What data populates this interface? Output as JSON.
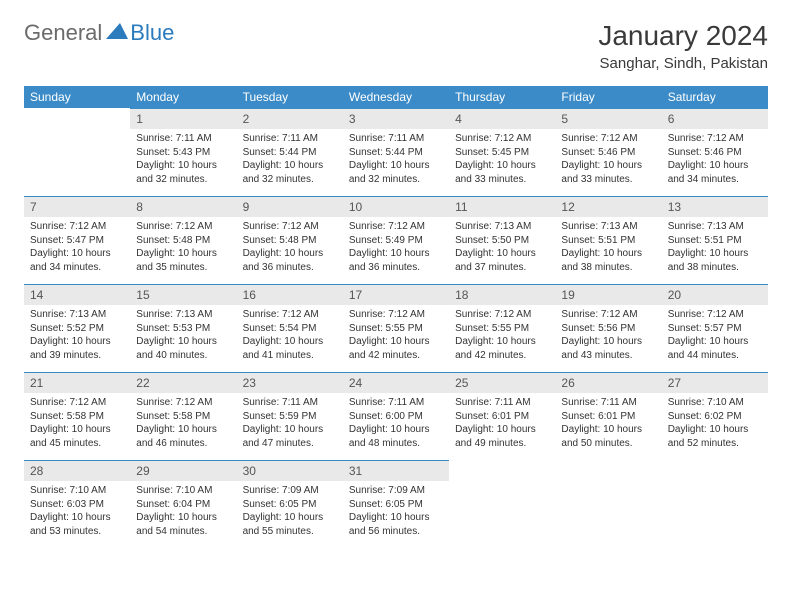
{
  "brand": {
    "text1": "General",
    "text2": "Blue"
  },
  "title": "January 2024",
  "location": "Sanghar, Sindh, Pakistan",
  "colors": {
    "header_bg": "#3b8bc8",
    "header_text": "#ffffff",
    "daynum_bg": "#e9e9e9",
    "daynum_text": "#555555",
    "body_text": "#333333",
    "rule": "#3b8bc8",
    "brand_gray": "#6b6b6b",
    "brand_blue": "#2b7bbd"
  },
  "day_labels": [
    "Sunday",
    "Monday",
    "Tuesday",
    "Wednesday",
    "Thursday",
    "Friday",
    "Saturday"
  ],
  "weeks": [
    [
      null,
      {
        "n": "1",
        "sr": "7:11 AM",
        "ss": "5:43 PM",
        "dl": "10 hours and 32 minutes."
      },
      {
        "n": "2",
        "sr": "7:11 AM",
        "ss": "5:44 PM",
        "dl": "10 hours and 32 minutes."
      },
      {
        "n": "3",
        "sr": "7:11 AM",
        "ss": "5:44 PM",
        "dl": "10 hours and 32 minutes."
      },
      {
        "n": "4",
        "sr": "7:12 AM",
        "ss": "5:45 PM",
        "dl": "10 hours and 33 minutes."
      },
      {
        "n": "5",
        "sr": "7:12 AM",
        "ss": "5:46 PM",
        "dl": "10 hours and 33 minutes."
      },
      {
        "n": "6",
        "sr": "7:12 AM",
        "ss": "5:46 PM",
        "dl": "10 hours and 34 minutes."
      }
    ],
    [
      {
        "n": "7",
        "sr": "7:12 AM",
        "ss": "5:47 PM",
        "dl": "10 hours and 34 minutes."
      },
      {
        "n": "8",
        "sr": "7:12 AM",
        "ss": "5:48 PM",
        "dl": "10 hours and 35 minutes."
      },
      {
        "n": "9",
        "sr": "7:12 AM",
        "ss": "5:48 PM",
        "dl": "10 hours and 36 minutes."
      },
      {
        "n": "10",
        "sr": "7:12 AM",
        "ss": "5:49 PM",
        "dl": "10 hours and 36 minutes."
      },
      {
        "n": "11",
        "sr": "7:13 AM",
        "ss": "5:50 PM",
        "dl": "10 hours and 37 minutes."
      },
      {
        "n": "12",
        "sr": "7:13 AM",
        "ss": "5:51 PM",
        "dl": "10 hours and 38 minutes."
      },
      {
        "n": "13",
        "sr": "7:13 AM",
        "ss": "5:51 PM",
        "dl": "10 hours and 38 minutes."
      }
    ],
    [
      {
        "n": "14",
        "sr": "7:13 AM",
        "ss": "5:52 PM",
        "dl": "10 hours and 39 minutes."
      },
      {
        "n": "15",
        "sr": "7:13 AM",
        "ss": "5:53 PM",
        "dl": "10 hours and 40 minutes."
      },
      {
        "n": "16",
        "sr": "7:12 AM",
        "ss": "5:54 PM",
        "dl": "10 hours and 41 minutes."
      },
      {
        "n": "17",
        "sr": "7:12 AM",
        "ss": "5:55 PM",
        "dl": "10 hours and 42 minutes."
      },
      {
        "n": "18",
        "sr": "7:12 AM",
        "ss": "5:55 PM",
        "dl": "10 hours and 42 minutes."
      },
      {
        "n": "19",
        "sr": "7:12 AM",
        "ss": "5:56 PM",
        "dl": "10 hours and 43 minutes."
      },
      {
        "n": "20",
        "sr": "7:12 AM",
        "ss": "5:57 PM",
        "dl": "10 hours and 44 minutes."
      }
    ],
    [
      {
        "n": "21",
        "sr": "7:12 AM",
        "ss": "5:58 PM",
        "dl": "10 hours and 45 minutes."
      },
      {
        "n": "22",
        "sr": "7:12 AM",
        "ss": "5:58 PM",
        "dl": "10 hours and 46 minutes."
      },
      {
        "n": "23",
        "sr": "7:11 AM",
        "ss": "5:59 PM",
        "dl": "10 hours and 47 minutes."
      },
      {
        "n": "24",
        "sr": "7:11 AM",
        "ss": "6:00 PM",
        "dl": "10 hours and 48 minutes."
      },
      {
        "n": "25",
        "sr": "7:11 AM",
        "ss": "6:01 PM",
        "dl": "10 hours and 49 minutes."
      },
      {
        "n": "26",
        "sr": "7:11 AM",
        "ss": "6:01 PM",
        "dl": "10 hours and 50 minutes."
      },
      {
        "n": "27",
        "sr": "7:10 AM",
        "ss": "6:02 PM",
        "dl": "10 hours and 52 minutes."
      }
    ],
    [
      {
        "n": "28",
        "sr": "7:10 AM",
        "ss": "6:03 PM",
        "dl": "10 hours and 53 minutes."
      },
      {
        "n": "29",
        "sr": "7:10 AM",
        "ss": "6:04 PM",
        "dl": "10 hours and 54 minutes."
      },
      {
        "n": "30",
        "sr": "7:09 AM",
        "ss": "6:05 PM",
        "dl": "10 hours and 55 minutes."
      },
      {
        "n": "31",
        "sr": "7:09 AM",
        "ss": "6:05 PM",
        "dl": "10 hours and 56 minutes."
      },
      null,
      null,
      null
    ]
  ],
  "labels": {
    "sunrise": "Sunrise:",
    "sunset": "Sunset:",
    "daylight": "Daylight:"
  }
}
